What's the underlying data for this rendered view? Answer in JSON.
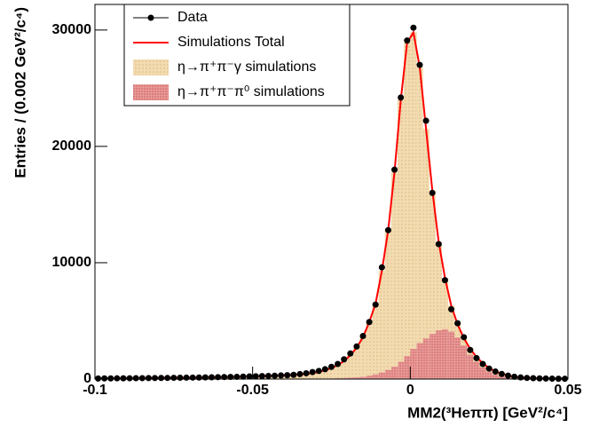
{
  "chart_data": {
    "type": "histogram",
    "xlabel": "MM2(³Heππ) [GeV²/c⁴]",
    "ylabel": "Entries / (0.002 GeV²/c⁴)",
    "xlim": [
      -0.1,
      0.05
    ],
    "ylim": [
      0,
      32200
    ],
    "xticks": [
      -0.1,
      -0.05,
      0,
      0.05
    ],
    "yticks": [
      0,
      10000,
      20000,
      30000
    ],
    "legend": "top-left",
    "x": [
      -0.099,
      -0.097,
      -0.095,
      -0.093,
      -0.091,
      -0.089,
      -0.087,
      -0.085,
      -0.083,
      -0.081,
      -0.079,
      -0.077,
      -0.075,
      -0.073,
      -0.071,
      -0.069,
      -0.067,
      -0.065,
      -0.063,
      -0.061,
      -0.059,
      -0.057,
      -0.055,
      -0.053,
      -0.051,
      -0.049,
      -0.047,
      -0.045,
      -0.043,
      -0.041,
      -0.039,
      -0.037,
      -0.035,
      -0.033,
      -0.031,
      -0.029,
      -0.027,
      -0.025,
      -0.023,
      -0.021,
      -0.019,
      -0.017,
      -0.015,
      -0.013,
      -0.011,
      -0.009,
      -0.007,
      -0.005,
      -0.003,
      -0.001,
      0.001,
      0.003,
      0.005,
      0.007,
      0.009,
      0.011,
      0.013,
      0.015,
      0.017,
      0.019,
      0.021,
      0.023,
      0.025,
      0.027,
      0.029,
      0.031,
      0.033,
      0.035,
      0.037,
      0.039,
      0.041,
      0.043,
      0.045,
      0.047,
      0.049
    ],
    "series": [
      {
        "name": "Data",
        "color": "#000000",
        "style": "points",
        "values": [
          50,
          55,
          58,
          62,
          66,
          70,
          75,
          80,
          85,
          90,
          95,
          100,
          108,
          115,
          120,
          128,
          135,
          145,
          155,
          165,
          175,
          185,
          195,
          210,
          225,
          240,
          255,
          270,
          290,
          310,
          335,
          365,
          430,
          500,
          600,
          700,
          850,
          1050,
          1300,
          1700,
          2200,
          2800,
          3700,
          4900,
          6400,
          9600,
          12800,
          18000,
          24200,
          29100,
          30200,
          27000,
          22200,
          16000,
          11600,
          8500,
          6000,
          4800,
          3600,
          2500,
          1800,
          1300,
          900,
          650,
          440,
          300,
          200,
          140,
          100,
          75,
          55,
          45,
          35,
          30,
          25
        ]
      },
      {
        "name": "Simulations Total",
        "color": "#ff0000",
        "style": "line",
        "values": [
          50,
          55,
          58,
          62,
          66,
          70,
          75,
          80,
          85,
          90,
          95,
          100,
          108,
          115,
          120,
          128,
          135,
          145,
          155,
          165,
          175,
          185,
          195,
          210,
          225,
          240,
          255,
          270,
          290,
          310,
          335,
          365,
          400,
          450,
          520,
          620,
          760,
          950,
          1200,
          1550,
          2050,
          2700,
          3600,
          4900,
          6500,
          9300,
          12800,
          17800,
          24000,
          28900,
          29800,
          26800,
          21500,
          16200,
          11800,
          8700,
          6300,
          4700,
          3500,
          2600,
          1900,
          1350,
          950,
          650,
          440,
          300,
          200,
          140,
          100,
          75,
          55,
          45,
          35,
          30,
          25
        ]
      },
      {
        "name": "η→π⁺π⁻γ simulations",
        "color": "#f3dbb0",
        "style": "bar",
        "values": [
          45,
          50,
          53,
          57,
          61,
          65,
          70,
          75,
          80,
          85,
          89,
          94,
          102,
          109,
          114,
          121,
          128,
          138,
          147,
          157,
          167,
          176,
          186,
          200,
          215,
          229,
          243,
          257,
          276,
          295,
          318,
          346,
          378,
          424,
          488,
          580,
          710,
          890,
          1120,
          1450,
          1920,
          2530,
          3380,
          4600,
          6080,
          8720,
          12000,
          16700,
          22500,
          26900,
          27200,
          23700,
          18000,
          12300,
          7600,
          4400,
          2200,
          1100,
          600,
          500,
          400,
          350,
          300,
          250,
          190,
          150,
          110,
          80,
          60,
          45,
          35,
          30,
          23,
          20,
          17
        ]
      },
      {
        "name": "η→π⁺π⁻π⁰ simulations",
        "color": "#e79a9a",
        "style": "bar",
        "values": [
          5,
          5,
          5,
          5,
          5,
          5,
          5,
          5,
          5,
          5,
          6,
          6,
          6,
          6,
          6,
          7,
          7,
          7,
          8,
          8,
          8,
          9,
          9,
          10,
          10,
          11,
          12,
          13,
          14,
          15,
          17,
          19,
          22,
          26,
          32,
          40,
          50,
          60,
          80,
          100,
          130,
          170,
          220,
          300,
          420,
          580,
          800,
          1100,
          1500,
          2000,
          2600,
          3100,
          3500,
          3900,
          4200,
          4300,
          4100,
          3600,
          2900,
          2100,
          1500,
          1000,
          650,
          400,
          250,
          150,
          90,
          60,
          40,
          30,
          20,
          15,
          12,
          10,
          8
        ]
      }
    ]
  }
}
